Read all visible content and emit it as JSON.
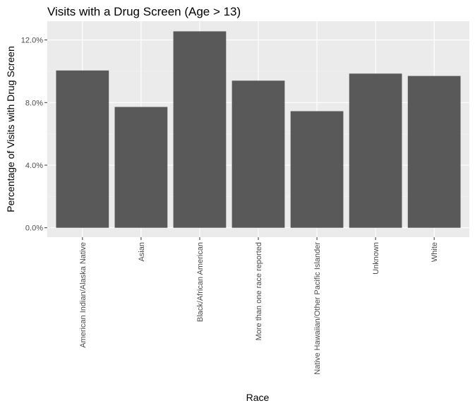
{
  "chart_data": {
    "type": "bar",
    "title": "Visits with a Drug Screen (Age > 13)",
    "xlabel": "Race",
    "ylabel": "Percentage of Visits with Drug Screen",
    "categories": [
      "American Indian/Alaska Native",
      "Asian",
      "Black/African American",
      "More than one race reported",
      "Native Hawaiian/Other Pacific Islander",
      "Unknown",
      "White"
    ],
    "values": [
      10.05,
      7.72,
      12.55,
      9.4,
      7.45,
      9.85,
      9.7
    ],
    "ylim": [
      -0.6,
      13.2
    ],
    "yticks": [
      0,
      4,
      8,
      12
    ],
    "ytick_labels": [
      "0.0%",
      "4.0%",
      "8.0%",
      "12.0%"
    ],
    "grid": true,
    "colors": {
      "bar": "#595959",
      "panel": "#ebebeb",
      "grid_major": "#ffffff",
      "grid_minor": "#f4f4f4"
    }
  }
}
